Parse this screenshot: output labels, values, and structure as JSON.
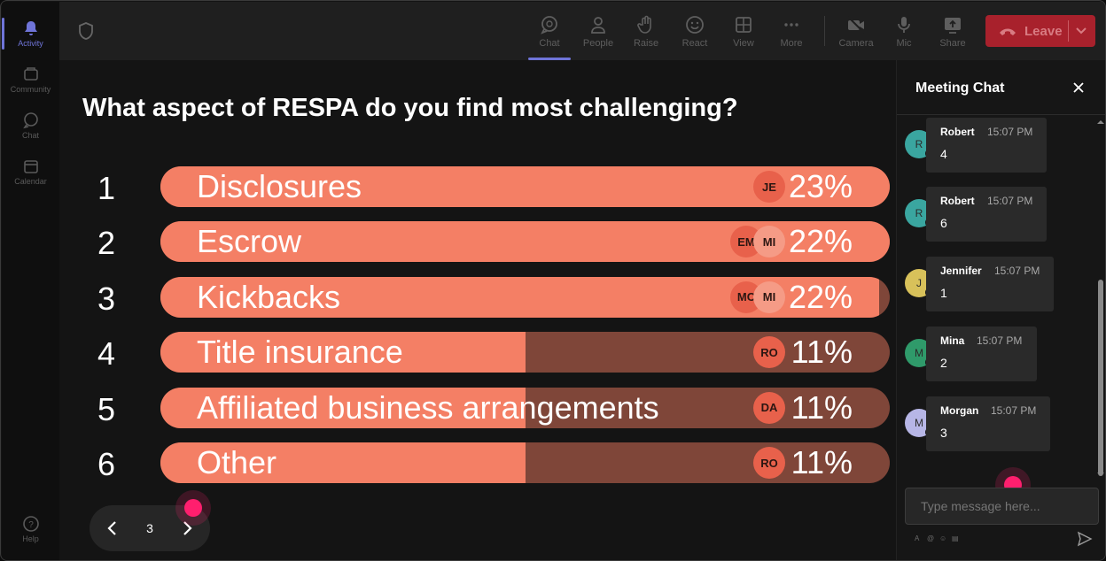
{
  "rail": {
    "items": [
      {
        "label": "Activity",
        "icon": "bell-icon",
        "active": true
      },
      {
        "label": "Community",
        "icon": "community-icon",
        "active": false
      },
      {
        "label": "Chat",
        "icon": "chat-icon",
        "active": false
      },
      {
        "label": "Calendar",
        "icon": "calendar-icon",
        "active": false
      }
    ],
    "help_label": "Help"
  },
  "toolbar": {
    "chat": "Chat",
    "people": "People",
    "raise": "Raise",
    "react": "React",
    "view": "View",
    "more": "More",
    "camera": "Camera",
    "mic": "Mic",
    "share": "Share",
    "leave": "Leave"
  },
  "poll": {
    "question": "What aspect of RESPA do you find most challenging?",
    "options": [
      {
        "num": "1",
        "label": "Disclosures",
        "pct": "23%",
        "fraction": 1.0,
        "avatars": [
          {
            "initials": "JE",
            "style": "dark"
          }
        ]
      },
      {
        "num": "2",
        "label": "Escrow",
        "pct": "22%",
        "fraction": 1.0,
        "avatars": [
          {
            "initials": "EM",
            "style": "dark"
          },
          {
            "initials": "MI",
            "style": "light"
          }
        ]
      },
      {
        "num": "3",
        "label": "Kickbacks",
        "pct": "22%",
        "fraction": 0.985,
        "avatars": [
          {
            "initials": "MC",
            "style": "dark"
          },
          {
            "initials": "MI",
            "style": "light"
          }
        ]
      },
      {
        "num": "4",
        "label": "Title insurance",
        "pct": "11%",
        "fraction": 0.5,
        "avatars": [
          {
            "initials": "RO",
            "style": "dark"
          }
        ]
      },
      {
        "num": "5",
        "label": "Affiliated business arrangements",
        "pct": "11%",
        "fraction": 0.5,
        "avatars": [
          {
            "initials": "DA",
            "style": "dark"
          }
        ]
      },
      {
        "num": "6",
        "label": "Other",
        "pct": "11%",
        "fraction": 0.5,
        "avatars": [
          {
            "initials": "RO",
            "style": "dark"
          }
        ]
      }
    ],
    "page": "3"
  },
  "chat": {
    "title": "Meeting Chat",
    "messages": [
      {
        "initial": "R",
        "name": "Robert",
        "time": "15:07 PM",
        "text": "4",
        "color": "#3aa6a0"
      },
      {
        "initial": "R",
        "name": "Robert",
        "time": "15:07 PM",
        "text": "6",
        "color": "#3aa6a0"
      },
      {
        "initial": "J",
        "name": "Jennifer",
        "time": "15:07 PM",
        "text": "1",
        "color": "#d8c15a"
      },
      {
        "initial": "M",
        "name": "Mina",
        "time": "15:07 PM",
        "text": "2",
        "color": "#2f9a6a"
      },
      {
        "initial": "M",
        "name": "Morgan",
        "time": "15:07 PM",
        "text": "3",
        "color": "#b7b6e6"
      }
    ],
    "input_placeholder": "Type message here..."
  },
  "colors": {
    "bar_fill": "#f47f65",
    "bar_track": "#7f4639",
    "leave": "#a8212c",
    "accent": "#6f74d8"
  }
}
